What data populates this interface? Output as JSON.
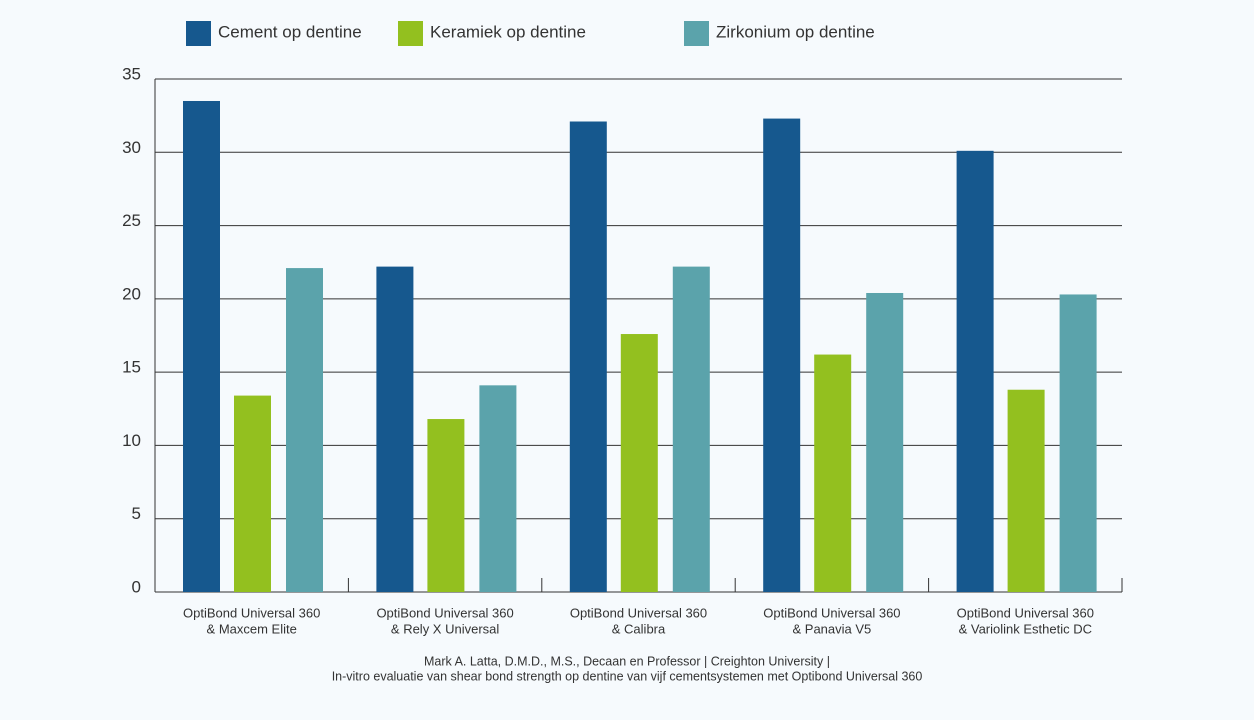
{
  "chart_data": {
    "type": "bar",
    "categories": [
      [
        "OptiBond Universal 360",
        "& Maxcem Elite"
      ],
      [
        "OptiBond Universal 360",
        "& Rely X Universal"
      ],
      [
        "OptiBond Universal 360",
        "& Calibra"
      ],
      [
        "OptiBond Universal 360",
        "& Panavia V5"
      ],
      [
        "OptiBond Universal 360",
        "& Variolink Esthetic DC"
      ]
    ],
    "series": [
      {
        "name": "Cement op dentine",
        "color": "#16588e",
        "values": [
          33.5,
          22.2,
          32.1,
          32.3,
          30.1
        ]
      },
      {
        "name": "Keramiek op dentine",
        "color": "#93c01f",
        "values": [
          13.4,
          11.8,
          17.6,
          16.2,
          13.8
        ]
      },
      {
        "name": "Zirkonium op dentine",
        "color": "#5ba3ab",
        "values": [
          22.1,
          14.1,
          22.2,
          20.4,
          20.3
        ]
      }
    ],
    "ylim": [
      0,
      35
    ],
    "yticks": [
      0,
      5,
      10,
      15,
      20,
      25,
      30,
      35
    ],
    "grid": true,
    "source": [
      "Mark A. Latta, D.M.D., M.S., Decaan en Professor | Creighton University |",
      "In-vitro evaluatie van shear bond strength op dentine van vijf cementsystemen met Optibond Universal 360"
    ]
  }
}
